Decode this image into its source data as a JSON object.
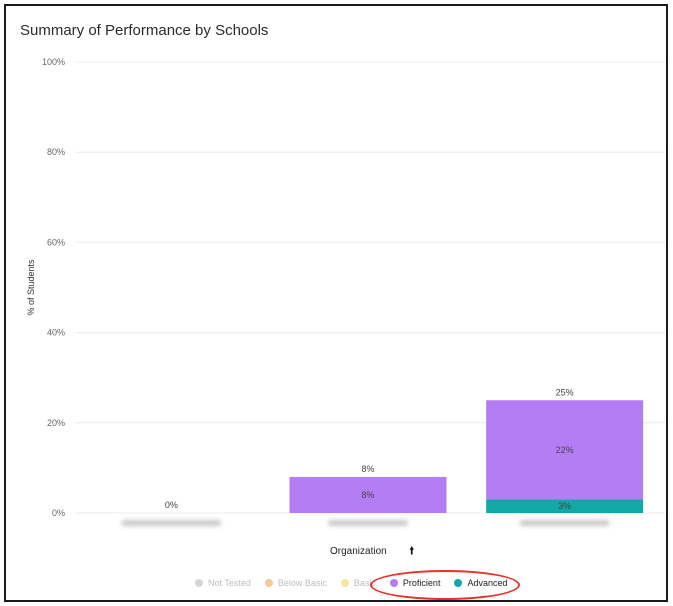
{
  "title": "Summary of Performance by Schools",
  "x_axis": {
    "label": "Organization",
    "sort_icon": "arrow-up-icon",
    "sort_glyph": "🠙"
  },
  "chart_data": {
    "type": "bar",
    "stacked": true,
    "title": "Summary of Performance by Schools",
    "xlabel": "Organization",
    "ylabel": "% of Students",
    "ylim": [
      0,
      100
    ],
    "yticks": [
      "0%",
      "20%",
      "40%",
      "60%",
      "80%",
      "100%"
    ],
    "grid": true,
    "categories": [
      "",
      "",
      ""
    ],
    "categories_obscured": true,
    "series": [
      {
        "name": "Advanced",
        "color": "#12a8a8",
        "values": [
          0,
          0,
          3
        ],
        "labels": [
          "",
          "",
          "3%"
        ]
      },
      {
        "name": "Proficient",
        "color": "#b57df5",
        "values": [
          0,
          8,
          22
        ],
        "labels": [
          "",
          "8%",
          "22%"
        ]
      }
    ],
    "totals": [
      "0%",
      "8%",
      "25%"
    ],
    "total_values": [
      0,
      8,
      25
    ]
  },
  "legend": {
    "placement": "bottom",
    "items": [
      {
        "label": "Not Tested",
        "color": "#d6d6d6",
        "active": false
      },
      {
        "label": "Below Basic",
        "color": "#f7c99a",
        "active": false
      },
      {
        "label": "Basic",
        "color": "#f5e6a0",
        "active": false
      },
      {
        "label": "Proficient",
        "color": "#b57df5",
        "active": true
      },
      {
        "label": "Advanced",
        "color": "#12a8a8",
        "active": true
      }
    ]
  },
  "colors": {
    "grid": "#ececec",
    "highlight": "#e2322a"
  }
}
